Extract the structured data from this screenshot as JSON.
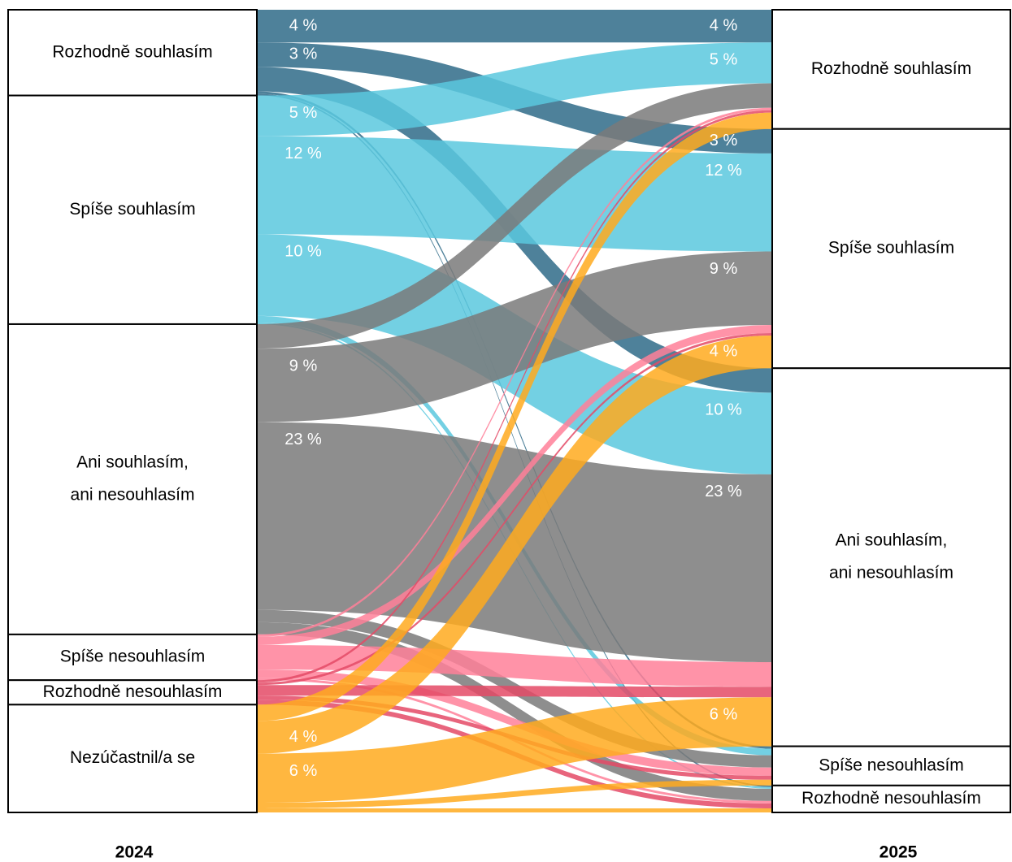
{
  "chart_data": {
    "type": "sankey",
    "columns": [
      "2024",
      "2025"
    ],
    "nodes": [
      {
        "label": [
          "Rozhodně souhlasím"
        ],
        "color": "#2f6b88"
      },
      {
        "label": [
          "Spíše souhlasím"
        ],
        "color": "#5bc8de"
      },
      {
        "label": [
          "Ani souhlasím,",
          "ani nesouhlasím"
        ],
        "color": "#7a7a7a"
      },
      {
        "label": [
          "Spíše nesouhlasím"
        ],
        "color": "#ff8099"
      },
      {
        "label": [
          "Rozhodně nesouhlasím"
        ],
        "color": "#e44a66"
      },
      {
        "label": [
          "Nezúčastnil/a se"
        ],
        "color": "#ffaa1f"
      }
    ],
    "flows": [
      {
        "source": 0,
        "target": 0,
        "value": 4,
        "label": "4 %"
      },
      {
        "source": 0,
        "target": 1,
        "value": 3,
        "label": "3 %"
      },
      {
        "source": 0,
        "target": 2,
        "value": 3
      },
      {
        "source": 0,
        "target": 3,
        "value": 0.3
      },
      {
        "source": 0,
        "target": 4,
        "value": 0.2
      },
      {
        "source": 1,
        "target": 0,
        "value": 5,
        "label": "5 %"
      },
      {
        "source": 1,
        "target": 1,
        "value": 12,
        "label": "12 %"
      },
      {
        "source": 1,
        "target": 2,
        "value": 10,
        "label": "10 %"
      },
      {
        "source": 1,
        "target": 3,
        "value": 0.8
      },
      {
        "source": 1,
        "target": 4,
        "value": 0.2
      },
      {
        "source": 2,
        "target": 0,
        "value": 3
      },
      {
        "source": 2,
        "target": 1,
        "value": 9,
        "label": "9 %"
      },
      {
        "source": 2,
        "target": 2,
        "value": 23,
        "label": "23 %"
      },
      {
        "source": 2,
        "target": 3,
        "value": 1.5
      },
      {
        "source": 2,
        "target": 4,
        "value": 1.5
      },
      {
        "source": 3,
        "target": 0,
        "value": 0.3
      },
      {
        "source": 3,
        "target": 1,
        "value": 1
      },
      {
        "source": 3,
        "target": 2,
        "value": 3
      },
      {
        "source": 3,
        "target": 3,
        "value": 1
      },
      {
        "source": 3,
        "target": 4,
        "value": 0.3
      },
      {
        "source": 4,
        "target": 0,
        "value": 0.3
      },
      {
        "source": 4,
        "target": 1,
        "value": 0.3
      },
      {
        "source": 4,
        "target": 2,
        "value": 1.3
      },
      {
        "source": 4,
        "target": 3,
        "value": 0.5
      },
      {
        "source": 4,
        "target": 4,
        "value": 0.6
      },
      {
        "source": 5,
        "target": 0,
        "value": 2
      },
      {
        "source": 5,
        "target": 1,
        "value": 4,
        "label": "4 %"
      },
      {
        "source": 5,
        "target": 2,
        "value": 6,
        "label": "6 %"
      },
      {
        "source": 5,
        "target": 3,
        "value": 0.7
      },
      {
        "source": 5,
        "target": 4,
        "value": 0.5
      }
    ]
  }
}
